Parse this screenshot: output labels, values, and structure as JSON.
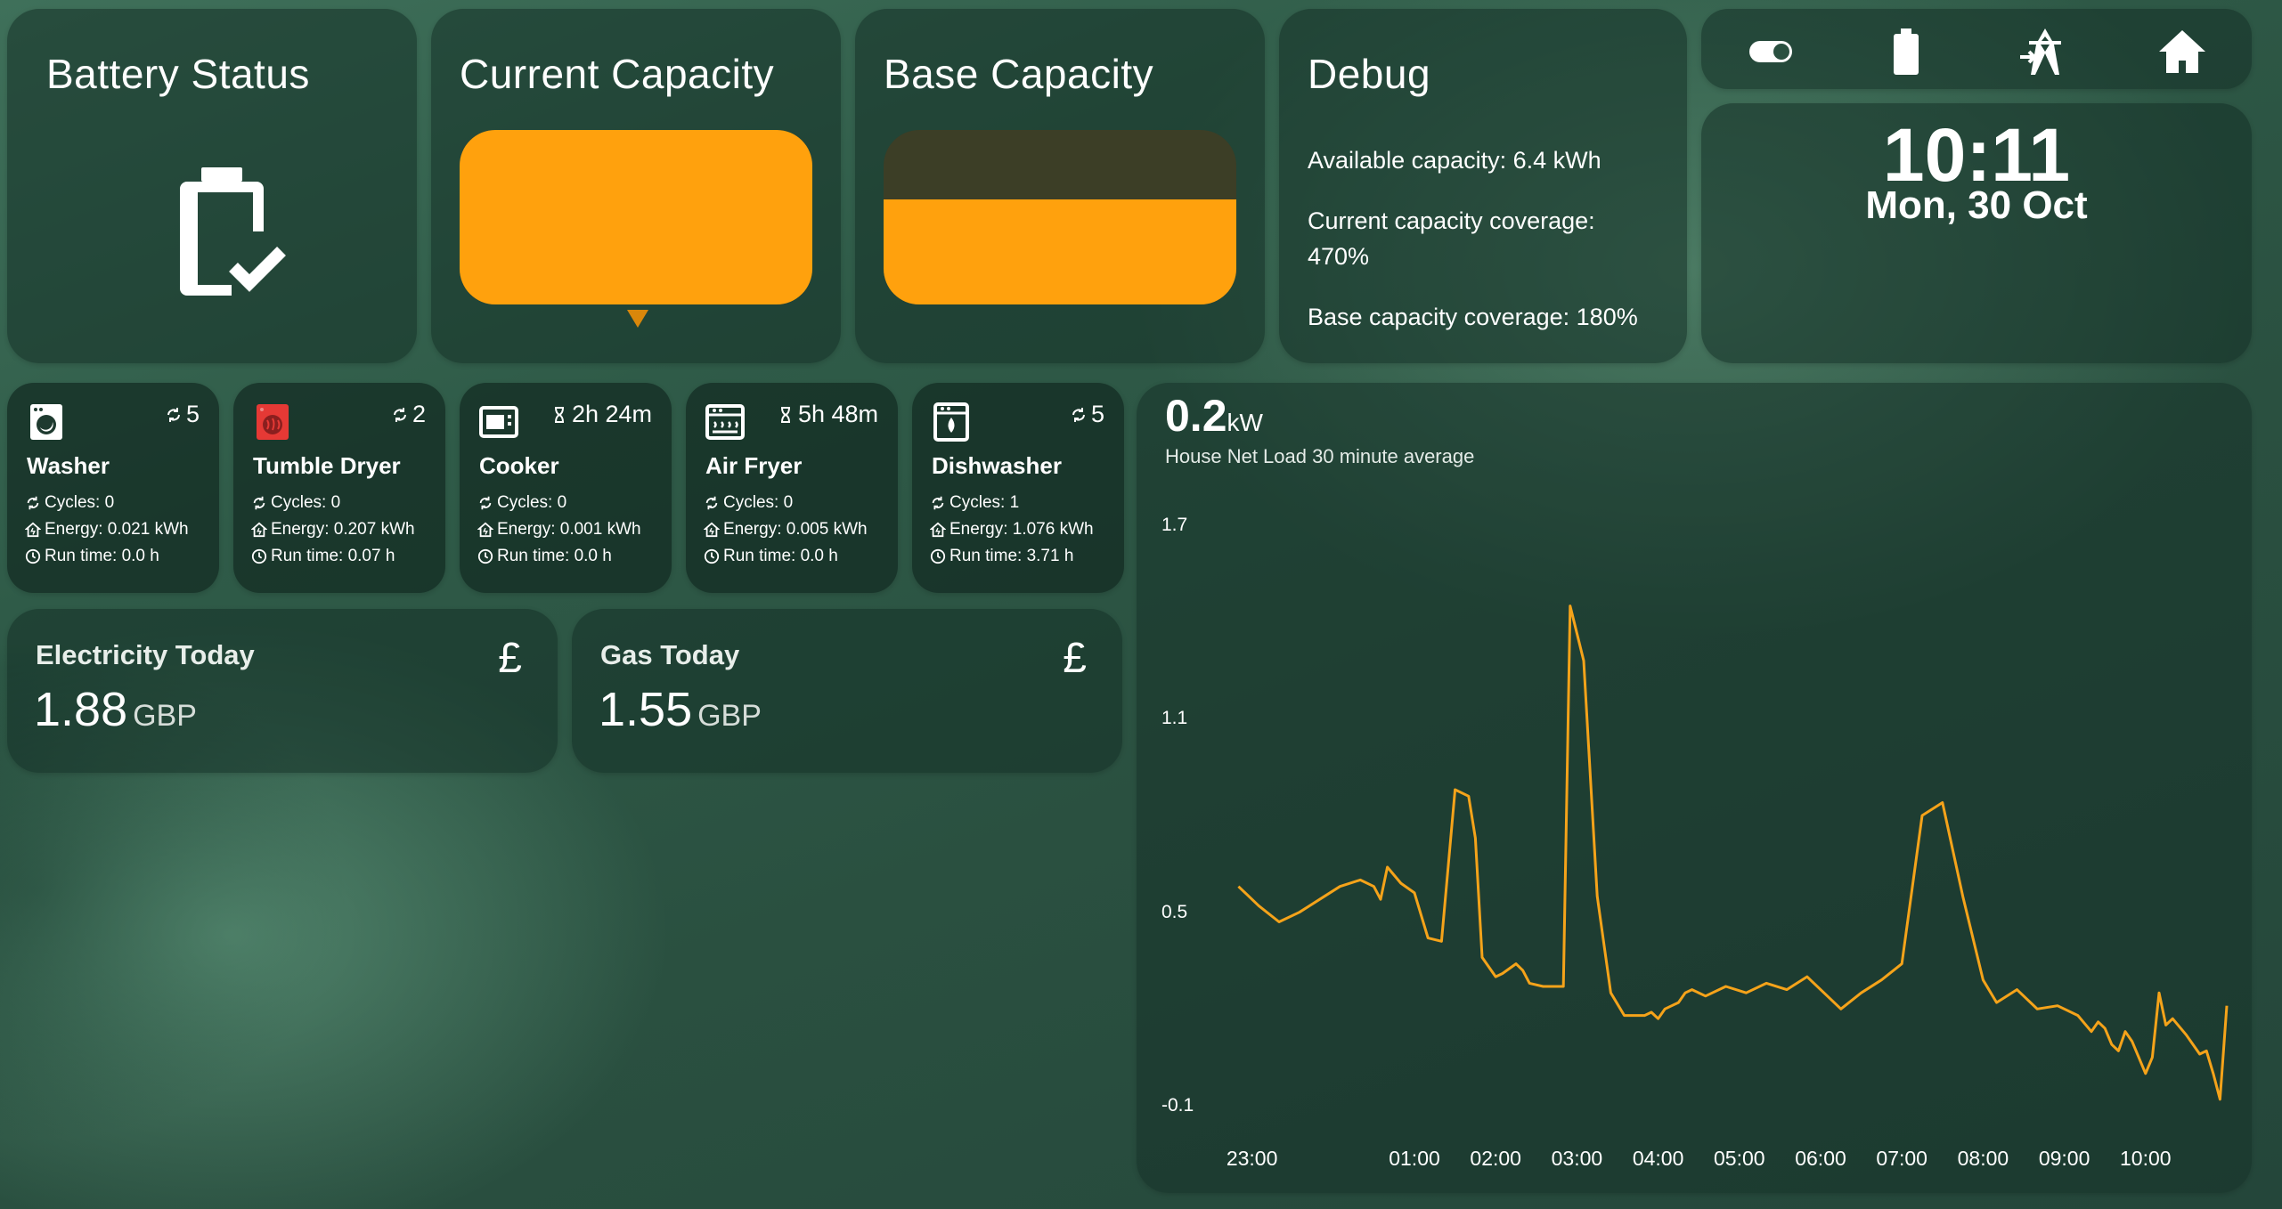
{
  "battery_status": {
    "title": "Battery Status",
    "icon": "battery-check-icon"
  },
  "current_capacity": {
    "title": "Current Capacity",
    "fill_fraction": 1.0,
    "color": "#ffa10d"
  },
  "base_capacity": {
    "title": "Base Capacity",
    "fill_fraction": 0.6,
    "color": "#ffa10d"
  },
  "debug": {
    "title": "Debug",
    "available": "Available capacity: 6.4 kWh",
    "current_coverage_1": "Current capacity coverage:",
    "current_coverage_2": "470%",
    "base_coverage": "Base capacity coverage: 180%"
  },
  "nav": {
    "icons": [
      "toggle-switch-icon",
      "battery-icon",
      "transmission-tower-icon",
      "home-icon"
    ]
  },
  "clock": {
    "time": "10:11",
    "date": "Mon, 30 Oct"
  },
  "appliances": [
    {
      "name": "Washer",
      "badge": "5",
      "badge_icon": "cycle-icon",
      "cycles": "Cycles: 0",
      "energy": "Energy: 0.021 kWh",
      "runtime": "Run time: 0.0 h",
      "icon": "washer-icon"
    },
    {
      "name": "Tumble Dryer",
      "badge": "2",
      "badge_icon": "cycle-icon",
      "cycles": "Cycles: 0",
      "energy": "Energy: 0.207 kWh",
      "runtime": "Run time: 0.07 h",
      "icon": "tumble-dryer-icon",
      "icon_color": "#e53935"
    },
    {
      "name": "Cooker",
      "badge": "2h 24m",
      "badge_icon": "hourglass-icon",
      "cycles": "Cycles: 0",
      "energy": "Energy: 0.001 kWh",
      "runtime": "Run time: 0.0 h",
      "icon": "cooker-icon"
    },
    {
      "name": "Air Fryer",
      "badge": "5h 48m",
      "badge_icon": "hourglass-icon",
      "cycles": "Cycles: 0",
      "energy": "Energy: 0.005 kWh",
      "runtime": "Run time: 0.0 h",
      "icon": "air-fryer-icon"
    },
    {
      "name": "Dishwasher",
      "badge": "5",
      "badge_icon": "cycle-icon",
      "cycles": "Cycles: 1",
      "energy": "Energy: 1.076 kWh",
      "runtime": "Run time: 3.71 h",
      "icon": "dishwasher-icon"
    }
  ],
  "electricity": {
    "title": "Electricity Today",
    "value": "1.88",
    "unit": "GBP",
    "icon": "pound-icon"
  },
  "gas": {
    "title": "Gas Today",
    "value": "1.55",
    "unit": "GBP",
    "icon": "pound-icon"
  },
  "pound_symbol": "£",
  "chart_data": {
    "type": "line",
    "value": "0.2",
    "unit": "kW",
    "subtitle": "House Net Load 30 minute average",
    "y_ticks": [
      "1.7",
      "1.1",
      "0.5",
      "-0.1"
    ],
    "ylim": [
      -0.1,
      1.7
    ],
    "x_ticks": [
      "23:00",
      "01:00",
      "02:00",
      "03:00",
      "04:00",
      "05:00",
      "06:00",
      "07:00",
      "08:00",
      "09:00",
      "10:00"
    ],
    "line_color": "#f5a31a",
    "series": [
      {
        "x": [
          "22:50",
          "23:05",
          "23:20",
          "23:35",
          "23:50",
          "00:05",
          "00:20",
          "00:30",
          "00:35",
          "00:40",
          "00:50",
          "01:00",
          "01:10",
          "01:20",
          "01:30",
          "01:40",
          "01:45",
          "01:50",
          "02:00",
          "02:05",
          "02:15",
          "02:20",
          "02:25",
          "02:35",
          "02:50",
          "02:55",
          "03:05",
          "03:15",
          "03:25",
          "03:35",
          "03:50",
          "03:55",
          "04:00",
          "04:05",
          "04:10",
          "04:15",
          "04:20",
          "04:25",
          "04:35",
          "04:50",
          "05:05",
          "05:20",
          "05:35",
          "05:50",
          "06:05",
          "06:15",
          "06:30",
          "06:45",
          "07:00",
          "07:15",
          "07:30",
          "07:45",
          "08:00",
          "08:10",
          "08:25",
          "08:40",
          "08:55",
          "09:10",
          "09:20",
          "09:25",
          "09:30",
          "09:35",
          "09:40",
          "09:45",
          "09:50",
          "10:00",
          "10:05",
          "10:10",
          "10:15",
          "10:20",
          "10:30",
          "10:40",
          "10:45",
          "10:50",
          "10:55",
          "11:00"
        ],
        "values": [
          0.58,
          0.52,
          0.47,
          0.5,
          0.54,
          0.58,
          0.6,
          0.58,
          0.54,
          0.64,
          0.59,
          0.56,
          0.42,
          0.41,
          0.88,
          0.86,
          0.73,
          0.36,
          0.3,
          0.31,
          0.34,
          0.32,
          0.28,
          0.27,
          0.27,
          1.45,
          1.28,
          0.55,
          0.25,
          0.18,
          0.18,
          0.19,
          0.17,
          0.2,
          0.21,
          0.22,
          0.25,
          0.26,
          0.24,
          0.27,
          0.25,
          0.28,
          0.26,
          0.3,
          0.24,
          0.2,
          0.25,
          0.29,
          0.34,
          0.8,
          0.84,
          0.55,
          0.29,
          0.22,
          0.26,
          0.2,
          0.21,
          0.18,
          0.13,
          0.16,
          0.14,
          0.09,
          0.07,
          0.13,
          0.1,
          0.0,
          0.05,
          0.25,
          0.15,
          0.17,
          0.12,
          0.06,
          0.07,
          0.0,
          -0.08,
          0.21
        ]
      }
    ]
  }
}
